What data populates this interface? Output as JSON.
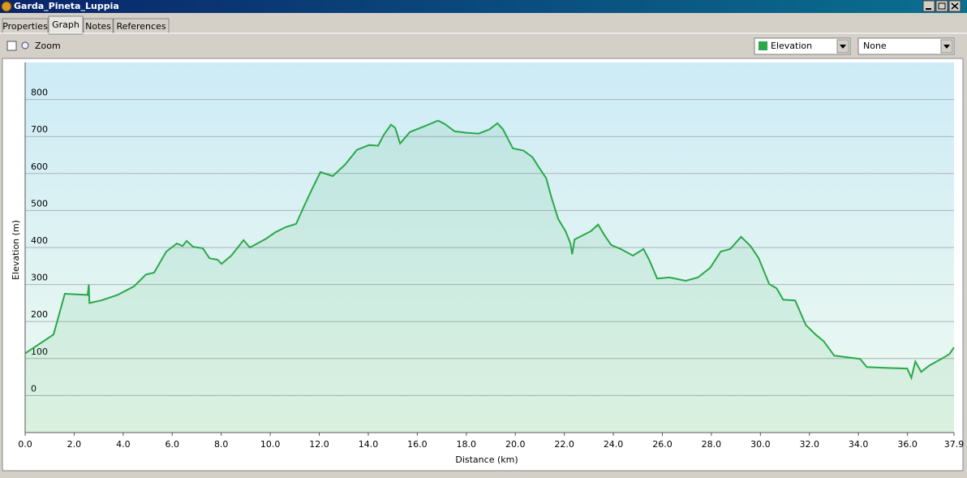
{
  "window": {
    "title": "Garda_Pineta_Luppia",
    "tabs": [
      "Properties",
      "Graph",
      "Notes",
      "References"
    ],
    "zoom_label": "Zoom",
    "second_select": "None"
  },
  "chart_data": {
    "type": "line",
    "xlabel": "Distance  (km)",
    "ylabel": "Elevation (m)",
    "x": [
      0,
      1.16,
      1.62,
      2.55,
      2.6,
      2.62,
      3.1,
      3.77,
      4.44,
      4.93,
      5.26,
      5.76,
      6.19,
      6.42,
      6.59,
      6.85,
      7.25,
      7.52,
      7.85,
      8.01,
      8.41,
      8.91,
      9.17,
      9.83,
      10.23,
      10.63,
      11.06,
      11.32,
      11.72,
      12.05,
      12.55,
      13.05,
      13.54,
      14.04,
      14.4,
      14.64,
      14.93,
      15.1,
      15.3,
      15.7,
      16.19,
      16.85,
      17.12,
      17.52,
      18.01,
      18.51,
      18.94,
      19.27,
      19.5,
      19.67,
      19.9,
      20.33,
      20.7,
      20.93,
      21.26,
      21.49,
      21.75,
      22.05,
      22.25,
      22.32,
      22.42,
      22.75,
      23.08,
      23.38,
      23.64,
      23.91,
      24.3,
      24.8,
      25.23,
      25.46,
      25.79,
      26.29,
      26.95,
      27.45,
      27.95,
      28.38,
      28.77,
      29.21,
      29.6,
      29.93,
      30.36,
      30.66,
      30.93,
      31.42,
      31.85,
      32.25,
      32.58,
      33.01,
      33.58,
      34.07,
      34.34,
      35.07,
      35.99,
      36.16,
      36.32,
      36.56,
      36.89,
      37.38,
      37.71,
      37.9
    ],
    "series": [
      {
        "name": "Elevation",
        "color": "#2aa84a",
        "values": [
          114,
          165,
          275,
          272,
          300,
          250,
          257,
          272,
          295,
          327,
          332,
          389,
          411,
          404,
          418,
          402,
          398,
          371,
          367,
          356,
          378,
          420,
          400,
          424,
          442,
          455,
          464,
          503,
          560,
          604,
          593,
          624,
          664,
          677,
          675,
          705,
          732,
          723,
          681,
          712,
          725,
          743,
          734,
          714,
          710,
          708,
          719,
          736,
          719,
          697,
          668,
          662,
          644,
          620,
          587,
          532,
          477,
          444,
          411,
          382,
          422,
          433,
          444,
          462,
          433,
          407,
          396,
          378,
          396,
          367,
          316,
          319,
          310,
          319,
          345,
          389,
          396,
          429,
          404,
          371,
          301,
          290,
          259,
          257,
          191,
          165,
          147,
          108,
          103,
          99,
          77,
          75,
          73,
          48,
          92,
          64,
          81,
          99,
          112,
          130
        ]
      }
    ],
    "xlim": [
      0,
      37.9
    ],
    "ylim": [
      -100,
      900
    ],
    "xticks": [
      {
        "value": 0,
        "label": "0.0"
      },
      {
        "value": 2,
        "label": "2.0"
      },
      {
        "value": 4,
        "label": "4.0"
      },
      {
        "value": 6,
        "label": "6.0"
      },
      {
        "value": 8,
        "label": "8.0"
      },
      {
        "value": 10,
        "label": "10.0"
      },
      {
        "value": 12,
        "label": "12.0"
      },
      {
        "value": 14,
        "label": "14.0"
      },
      {
        "value": 16,
        "label": "16.0"
      },
      {
        "value": 18,
        "label": "18.0"
      },
      {
        "value": 20,
        "label": "20.0"
      },
      {
        "value": 22,
        "label": "22.0"
      },
      {
        "value": 24,
        "label": "24.0"
      },
      {
        "value": 26,
        "label": "26.0"
      },
      {
        "value": 28,
        "label": "28.0"
      },
      {
        "value": 30,
        "label": "30.0"
      },
      {
        "value": 32,
        "label": "32.0"
      },
      {
        "value": 34,
        "label": "34.0"
      },
      {
        "value": 36,
        "label": "36.0"
      },
      37.9
    ],
    "yticks": [
      0,
      100,
      200,
      300,
      400,
      500,
      600,
      700,
      800
    ],
    "grid": true
  }
}
